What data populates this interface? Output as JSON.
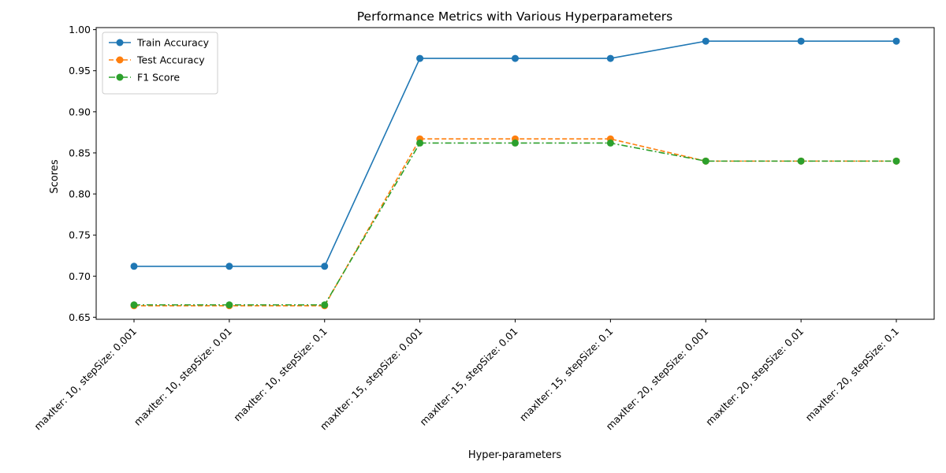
{
  "chart_data": {
    "type": "line",
    "title": "Performance Metrics with Various Hyperparameters",
    "xlabel": "Hyper-parameters",
    "ylabel": "Scores",
    "categories": [
      "maxIter: 10, stepSize: 0.001",
      "maxIter: 10, stepSize: 0.01",
      "maxIter: 10, stepSize: 0.1",
      "maxIter: 15, stepSize: 0.001",
      "maxIter: 15, stepSize: 0.01",
      "maxIter: 15, stepSize: 0.1",
      "maxIter: 20, stepSize: 0.001",
      "maxIter: 20, stepSize: 0.01",
      "maxIter: 20, stepSize: 0.1"
    ],
    "series": [
      {
        "name": "Train Accuracy",
        "color": "#1f77b4",
        "linestyle": "solid",
        "values": [
          0.712,
          0.712,
          0.712,
          0.965,
          0.965,
          0.965,
          0.986,
          0.986,
          0.986
        ]
      },
      {
        "name": "Test Accuracy",
        "color": "#ff7f0e",
        "linestyle": "dashed",
        "values": [
          0.664,
          0.664,
          0.664,
          0.867,
          0.867,
          0.867,
          0.84,
          0.84,
          0.84
        ]
      },
      {
        "name": "F1 Score",
        "color": "#2ca02c",
        "linestyle": "dashdot",
        "values": [
          0.665,
          0.665,
          0.665,
          0.862,
          0.862,
          0.862,
          0.84,
          0.84,
          0.84
        ]
      }
    ],
    "ylim": [
      0.6475,
      1.0025
    ],
    "yticks": [
      "0.65",
      "0.70",
      "0.75",
      "0.80",
      "0.85",
      "0.90",
      "0.95",
      "1.00"
    ],
    "grid": false,
    "legend_position": "top-left"
  }
}
